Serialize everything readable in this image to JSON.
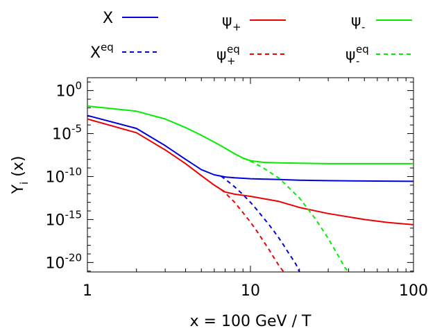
{
  "chart_data": {
    "type": "line",
    "title": "",
    "xlabel": "x = 100 GeV / T",
    "ylabel": "Y",
    "ylabel_sub": "i",
    "ylabel_arg": " (x)",
    "xscale": "log",
    "yscale": "log",
    "xlim": [
      1,
      100
    ],
    "ylim_exponent": [
      -21.1,
      1.5
    ],
    "x_ticks": [
      {
        "value": 1,
        "label": "1"
      },
      {
        "value": 10,
        "label": "10"
      },
      {
        "value": 100,
        "label": "100"
      }
    ],
    "y_ticks": [
      {
        "exponent": 0,
        "base": "10",
        "sup": "0"
      },
      {
        "exponent": -5,
        "base": "10",
        "sup": "-5"
      },
      {
        "exponent": -10,
        "base": "10",
        "sup": "-10"
      },
      {
        "exponent": -15,
        "base": "10",
        "sup": "-15"
      },
      {
        "exponent": -20,
        "base": "10",
        "sup": "-20"
      }
    ],
    "legend_position": "top",
    "series": [
      {
        "name": "X",
        "label": "X",
        "sup": "",
        "sub": "",
        "color": "#0000dd",
        "dash": "solid",
        "points": [
          [
            1,
            -2.9
          ],
          [
            2,
            -4.4
          ],
          [
            3,
            -6.4
          ],
          [
            4,
            -8.0
          ],
          [
            5,
            -9.2
          ],
          [
            6,
            -9.8
          ],
          [
            6.6,
            -9.95
          ],
          [
            7,
            -10.05
          ],
          [
            8,
            -10.15
          ],
          [
            10,
            -10.25
          ],
          [
            15,
            -10.35
          ],
          [
            20,
            -10.42
          ],
          [
            30,
            -10.48
          ],
          [
            50,
            -10.52
          ],
          [
            100,
            -10.56
          ]
        ]
      },
      {
        "name": "ψ+",
        "label": "ψ",
        "sup": "",
        "sub": "+",
        "color": "#ee0000",
        "dash": "solid",
        "points": [
          [
            1,
            -3.3
          ],
          [
            2,
            -4.9
          ],
          [
            3,
            -6.9
          ],
          [
            4,
            -8.5
          ],
          [
            5,
            -9.9
          ],
          [
            6,
            -11.0
          ],
          [
            6.6,
            -11.5
          ],
          [
            7,
            -11.8
          ],
          [
            8,
            -12.05
          ],
          [
            10,
            -12.3
          ],
          [
            15,
            -12.9
          ],
          [
            20,
            -13.6
          ],
          [
            30,
            -14.3
          ],
          [
            50,
            -15.0
          ],
          [
            70,
            -15.35
          ],
          [
            100,
            -15.6
          ]
        ]
      },
      {
        "name": "ψ-",
        "label": "ψ",
        "sup": "",
        "sub": "-",
        "color": "#00ee00",
        "dash": "solid",
        "points": [
          [
            1,
            -1.8
          ],
          [
            2,
            -2.4
          ],
          [
            3,
            -3.3
          ],
          [
            4,
            -4.3
          ],
          [
            5,
            -5.2
          ],
          [
            6,
            -6.0
          ],
          [
            7,
            -6.7
          ],
          [
            8,
            -7.35
          ],
          [
            9,
            -7.85
          ],
          [
            10,
            -8.15
          ],
          [
            12,
            -8.35
          ],
          [
            15,
            -8.4
          ],
          [
            20,
            -8.45
          ],
          [
            30,
            -8.5
          ],
          [
            50,
            -8.5
          ],
          [
            100,
            -8.5
          ]
        ]
      },
      {
        "name": "Xeq",
        "label": "X",
        "sup": "eq",
        "sub": "",
        "color": "#0000dd",
        "dash": "dashed",
        "points": [
          [
            6.6,
            -9.95
          ],
          [
            7,
            -10.3
          ],
          [
            8,
            -11.2
          ],
          [
            9,
            -12.1
          ],
          [
            10,
            -13.0
          ],
          [
            11,
            -13.9
          ],
          [
            12,
            -14.8
          ],
          [
            13,
            -15.6
          ],
          [
            14,
            -16.4
          ],
          [
            15,
            -17.2
          ],
          [
            16,
            -18.0
          ],
          [
            17,
            -18.8
          ],
          [
            18,
            -19.5
          ],
          [
            19,
            -20.2
          ],
          [
            20,
            -21.1
          ]
        ]
      },
      {
        "name": "ψ+eq",
        "label": "ψ",
        "sup": "eq",
        "sub": "+",
        "color": "#ee0000",
        "dash": "dashed",
        "points": [
          [
            6.6,
            -11.5
          ],
          [
            7,
            -11.9
          ],
          [
            8,
            -13.0
          ],
          [
            9,
            -14.2
          ],
          [
            10,
            -15.3
          ],
          [
            11,
            -16.4
          ],
          [
            12,
            -17.5
          ],
          [
            13,
            -18.5
          ],
          [
            14,
            -19.5
          ],
          [
            15,
            -20.4
          ],
          [
            16,
            -21.1
          ]
        ]
      },
      {
        "name": "ψ-eq",
        "label": "ψ",
        "sup": "eq",
        "sub": "-",
        "color": "#00ee00",
        "dash": "dashed",
        "points": [
          [
            9,
            -7.85
          ],
          [
            10,
            -8.2
          ],
          [
            12,
            -9.0
          ],
          [
            15,
            -10.2
          ],
          [
            20,
            -12.5
          ],
          [
            25,
            -14.9
          ],
          [
            30,
            -17.2
          ],
          [
            35,
            -19.4
          ],
          [
            38,
            -20.6
          ],
          [
            40,
            -21.1
          ]
        ]
      }
    ]
  }
}
